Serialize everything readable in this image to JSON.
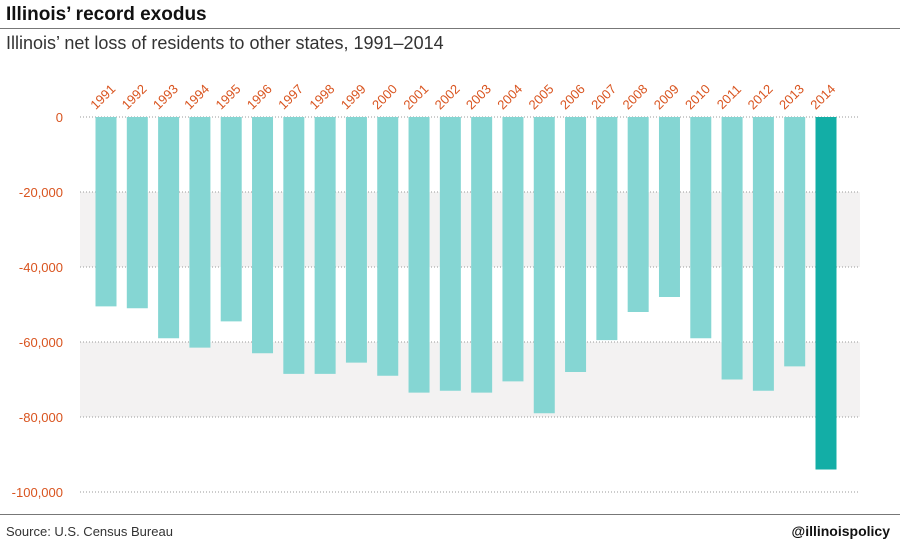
{
  "header": {
    "title": "Illinois’ record exodus",
    "subtitle": "Illinois’ net loss of residents to other states, 1991–2014"
  },
  "footer": {
    "source": "Source: U.S. Census Bureau",
    "handle": "@illinoispolicy"
  },
  "colors": {
    "bar": "#85d6d3",
    "highlight": "#13aea6",
    "label": "#d9541f",
    "band": "#f3f2f2"
  },
  "chart_data": {
    "type": "bar",
    "title": "Illinois’ record exodus",
    "subtitle": "Illinois’ net loss of residents to other states, 1991–2014",
    "xlabel": "",
    "ylabel": "",
    "ylim": [
      -100000,
      0
    ],
    "yticks": [
      0,
      -20000,
      -40000,
      -60000,
      -80000,
      -100000
    ],
    "ytick_labels": [
      "0",
      "-20,000",
      "-40,000",
      "-60,000",
      "-80,000",
      "-100,000"
    ],
    "grid": true,
    "categories": [
      "1991",
      "1992",
      "1993",
      "1994",
      "1995",
      "1996",
      "1997",
      "1998",
      "1999",
      "2000",
      "2001",
      "2002",
      "2003",
      "2004",
      "2005",
      "2006",
      "2007",
      "2008",
      "2009",
      "2010",
      "2011",
      "2012",
      "2013",
      "2014"
    ],
    "values": [
      -50500,
      -51000,
      -59000,
      -61500,
      -54500,
      -63000,
      -68500,
      -68500,
      -65500,
      -69000,
      -73500,
      -73000,
      -73500,
      -70500,
      -79000,
      -68000,
      -59500,
      -52000,
      -48000,
      -59000,
      -70000,
      -73000,
      -66500,
      -94000
    ],
    "highlight_category": "2014"
  }
}
